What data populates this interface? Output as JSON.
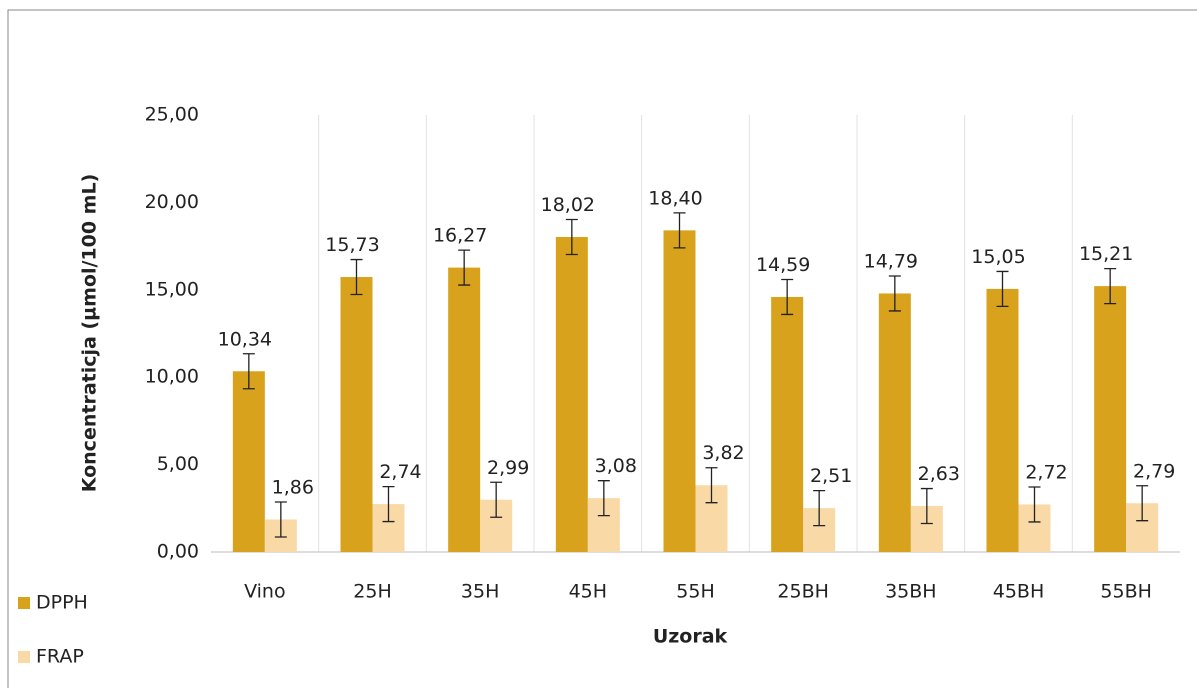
{
  "chart_data": {
    "type": "bar",
    "categories": [
      "Vino",
      "25H",
      "35H",
      "45H",
      "55H",
      "25BH",
      "35BH",
      "45BH",
      "55BH"
    ],
    "series": [
      {
        "name": "DPPH",
        "color": "#d9a21c",
        "values": [
          10.34,
          15.73,
          16.27,
          18.02,
          18.4,
          14.59,
          14.79,
          15.05,
          15.21
        ],
        "value_labels": [
          "10,34",
          "15,73",
          "16,27",
          "18,02",
          "18,40",
          "14,59",
          "14,79",
          "15,05",
          "15,21"
        ],
        "errors": [
          1.0,
          1.0,
          1.0,
          1.0,
          1.0,
          1.0,
          1.0,
          1.0,
          1.0
        ]
      },
      {
        "name": "FRAP",
        "color": "#f9d9a6",
        "values": [
          1.86,
          2.74,
          2.99,
          3.08,
          3.82,
          2.51,
          2.63,
          2.72,
          2.79
        ],
        "value_labels": [
          "1,86",
          "2,74",
          "2,99",
          "3,08",
          "3,82",
          "2,51",
          "2,63",
          "2,72",
          "2,79"
        ],
        "errors": [
          1.0,
          1.0,
          1.0,
          1.0,
          1.0,
          1.0,
          1.0,
          1.0,
          1.0
        ]
      }
    ],
    "x_label": "Uzorak",
    "y_label": "Koncentraticja (µmol/100 mL)",
    "ylim": [
      0,
      25
    ],
    "yticks": [
      {
        "value": 0,
        "label": "0,00"
      },
      {
        "value": 5,
        "label": "5,00"
      },
      {
        "value": 10,
        "label": "10,00"
      },
      {
        "value": 15,
        "label": "15,00"
      },
      {
        "value": 20,
        "label": "20,00"
      },
      {
        "value": 25,
        "label": "25,00"
      }
    ],
    "legend": "bottom-left"
  }
}
